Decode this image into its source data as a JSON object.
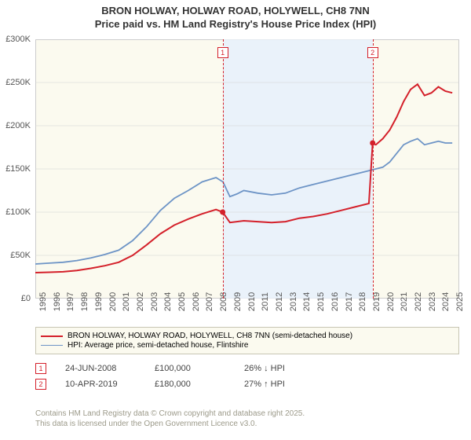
{
  "title_line1": "BRON HOLWAY, HOLWAY ROAD, HOLYWELL, CH8 7NN",
  "title_line2": "Price paid vs. HM Land Registry's House Price Index (HPI)",
  "chart": {
    "type": "line",
    "background_color": "#fbfaef",
    "shaded_band_color": "#eaf2fa",
    "grid_color": "#d0d0d0",
    "x_range": [
      1995,
      2025.5
    ],
    "y_range": [
      0,
      300000
    ],
    "y_ticks": [
      0,
      50000,
      100000,
      150000,
      200000,
      250000,
      300000
    ],
    "y_tick_labels": [
      "£0",
      "£50K",
      "£100K",
      "£150K",
      "£200K",
      "£250K",
      "£300K"
    ],
    "x_ticks": [
      1995,
      1996,
      1997,
      1998,
      1999,
      2000,
      2001,
      2002,
      2003,
      2004,
      2005,
      2006,
      2007,
      2008,
      2009,
      2010,
      2011,
      2012,
      2013,
      2014,
      2015,
      2016,
      2017,
      2018,
      2019,
      2020,
      2021,
      2022,
      2023,
      2024,
      2025
    ],
    "shaded_band_x": [
      2008.48,
      2019.27
    ],
    "series": [
      {
        "name": "BRON HOLWAY, HOLWAY ROAD, HOLYWELL, CH8 7NN (semi-detached house)",
        "color": "#d4202a",
        "line_width": 2,
        "points": [
          [
            1995,
            30000
          ],
          [
            1996,
            30500
          ],
          [
            1997,
            31000
          ],
          [
            1998,
            32500
          ],
          [
            1999,
            35000
          ],
          [
            2000,
            38000
          ],
          [
            2001,
            42000
          ],
          [
            2002,
            50000
          ],
          [
            2003,
            62000
          ],
          [
            2004,
            75000
          ],
          [
            2005,
            85000
          ],
          [
            2006,
            92000
          ],
          [
            2007,
            98000
          ],
          [
            2008,
            103000
          ],
          [
            2008.48,
            100000
          ],
          [
            2009,
            88000
          ],
          [
            2010,
            90000
          ],
          [
            2011,
            89000
          ],
          [
            2012,
            88000
          ],
          [
            2013,
            89000
          ],
          [
            2014,
            93000
          ],
          [
            2015,
            95000
          ],
          [
            2016,
            98000
          ],
          [
            2017,
            102000
          ],
          [
            2018,
            106000
          ],
          [
            2019,
            110000
          ],
          [
            2019.27,
            180000
          ],
          [
            2019.5,
            178000
          ],
          [
            2020,
            185000
          ],
          [
            2020.5,
            195000
          ],
          [
            2021,
            210000
          ],
          [
            2021.5,
            228000
          ],
          [
            2022,
            242000
          ],
          [
            2022.5,
            248000
          ],
          [
            2023,
            235000
          ],
          [
            2023.5,
            238000
          ],
          [
            2024,
            245000
          ],
          [
            2024.5,
            240000
          ],
          [
            2025,
            238000
          ]
        ]
      },
      {
        "name": "HPI: Average price, semi-detached house, Flintshire",
        "color": "#6d94c6",
        "line_width": 1.8,
        "points": [
          [
            1995,
            40000
          ],
          [
            1996,
            41000
          ],
          [
            1997,
            42000
          ],
          [
            1998,
            44000
          ],
          [
            1999,
            47000
          ],
          [
            2000,
            51000
          ],
          [
            2001,
            56000
          ],
          [
            2002,
            67000
          ],
          [
            2003,
            83000
          ],
          [
            2004,
            102000
          ],
          [
            2005,
            116000
          ],
          [
            2006,
            125000
          ],
          [
            2007,
            135000
          ],
          [
            2008,
            140000
          ],
          [
            2008.5,
            135000
          ],
          [
            2009,
            118000
          ],
          [
            2009.5,
            121000
          ],
          [
            2010,
            125000
          ],
          [
            2011,
            122000
          ],
          [
            2012,
            120000
          ],
          [
            2013,
            122000
          ],
          [
            2014,
            128000
          ],
          [
            2015,
            132000
          ],
          [
            2016,
            136000
          ],
          [
            2017,
            140000
          ],
          [
            2018,
            144000
          ],
          [
            2019,
            148000
          ],
          [
            2020,
            152000
          ],
          [
            2020.5,
            158000
          ],
          [
            2021,
            168000
          ],
          [
            2021.5,
            178000
          ],
          [
            2022,
            182000
          ],
          [
            2022.5,
            185000
          ],
          [
            2023,
            178000
          ],
          [
            2023.5,
            180000
          ],
          [
            2024,
            182000
          ],
          [
            2024.5,
            180000
          ],
          [
            2025,
            180000
          ]
        ]
      }
    ],
    "markers": [
      {
        "num": "1",
        "x": 2008.48,
        "y": 100000,
        "color": "#d4202a"
      },
      {
        "num": "2",
        "x": 2019.27,
        "y": 180000,
        "color": "#d4202a"
      }
    ]
  },
  "legend": {
    "items": [
      {
        "color": "#d4202a",
        "width": 2,
        "label": "BRON HOLWAY, HOLWAY ROAD, HOLYWELL, CH8 7NN (semi-detached house)"
      },
      {
        "color": "#6d94c6",
        "width": 1.8,
        "label": "HPI: Average price, semi-detached house, Flintshire"
      }
    ]
  },
  "data_points": [
    {
      "num": "1",
      "color": "#d4202a",
      "date": "24-JUN-2008",
      "price": "£100,000",
      "delta": "26% ↓ HPI"
    },
    {
      "num": "2",
      "color": "#d4202a",
      "date": "10-APR-2019",
      "price": "£180,000",
      "delta": "27% ↑ HPI"
    }
  ],
  "footer_line1": "Contains HM Land Registry data © Crown copyright and database right 2025.",
  "footer_line2": "This data is licensed under the Open Government Licence v3.0."
}
